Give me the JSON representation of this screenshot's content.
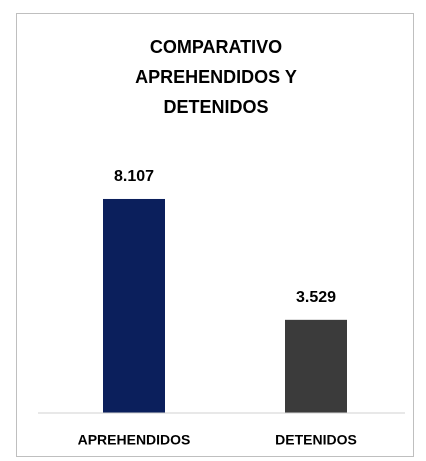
{
  "chart_data": {
    "type": "bar",
    "title": "COMPARATIVO APREHENDIDOS Y DETENIDOS",
    "categories": [
      "APREHENDIDOS",
      "DETENIDOS"
    ],
    "values": [
      8107,
      3529
    ],
    "value_labels": [
      "8.107",
      "3.529"
    ],
    "colors": [
      "#0b1f5c",
      "#3b3b3b"
    ],
    "ylim": [
      0,
      9000
    ]
  }
}
